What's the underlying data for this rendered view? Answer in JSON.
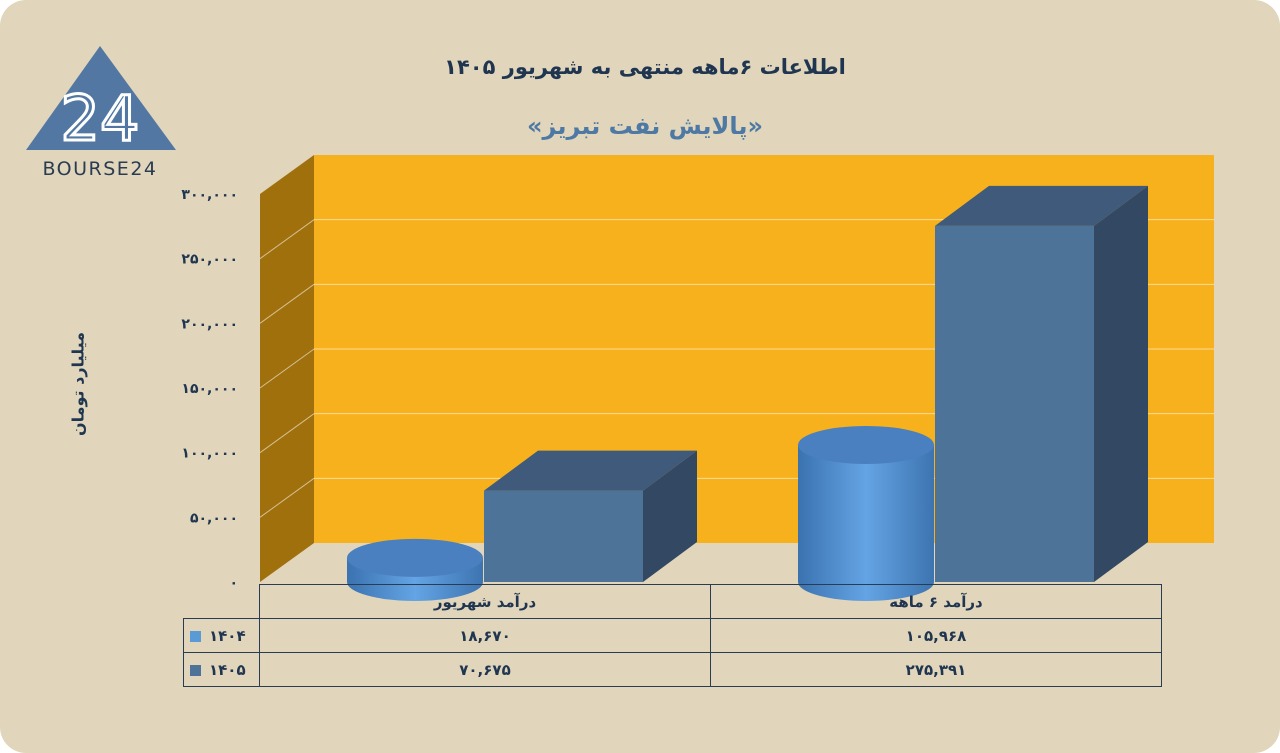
{
  "logo": {
    "text": "BOURSE24",
    "mark": "24"
  },
  "colors": {
    "background": "#e1d6bb",
    "plot": "#f7b11c",
    "wall_side": "#a0700d",
    "series_1404": "#5b9bd5",
    "series_1405": "#4e7399"
  },
  "chart_data": {
    "type": "bar",
    "title": "اطلاعات ۶ماهه منتهی به شهریور ۱۴۰۵",
    "subtitle": "«پالایش نفت تبریز»",
    "ylabel": "میلیارد تومان",
    "xlabel": "",
    "ylim": [
      0,
      300000
    ],
    "y_ticks": [
      0,
      50000,
      100000,
      150000,
      200000,
      250000,
      300000
    ],
    "y_tick_labels": [
      "۰",
      "۵۰,۰۰۰",
      "۱۰۰,۰۰۰",
      "۱۵۰,۰۰۰",
      "۲۰۰,۰۰۰",
      "۲۵۰,۰۰۰",
      "۳۰۰,۰۰۰"
    ],
    "categories": [
      "درآمد شهریور",
      "درآمد ۶ ماهه"
    ],
    "series": [
      {
        "name": "۱۴۰۴",
        "shape": "cylinder",
        "values": [
          18670,
          105968
        ],
        "value_labels": [
          "۱۸,۶۷۰",
          "۱۰۵,۹۶۸"
        ]
      },
      {
        "name": "۱۴۰۵",
        "shape": "box",
        "values": [
          70675,
          275391
        ],
        "value_labels": [
          "۷۰,۶۷۵",
          "۲۷۵,۳۹۱"
        ]
      }
    ],
    "grid": true,
    "legend": "data-table-below"
  }
}
